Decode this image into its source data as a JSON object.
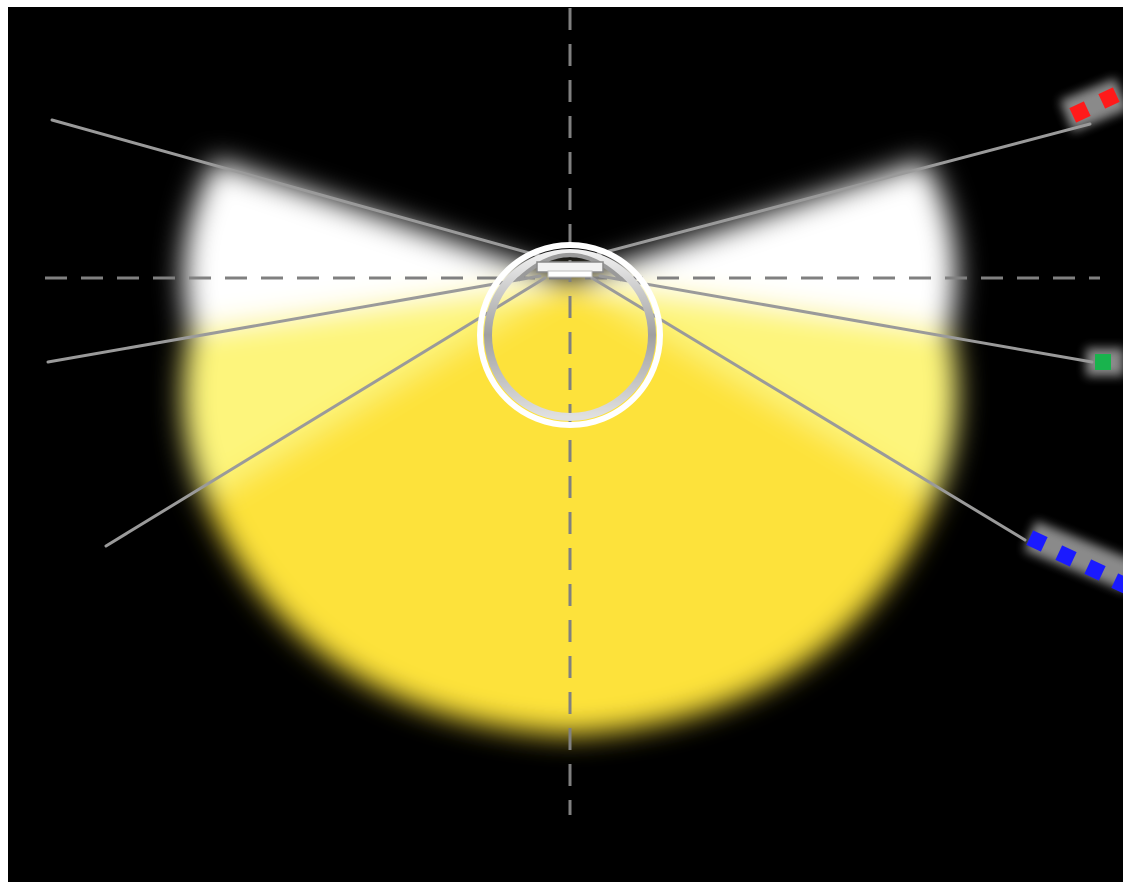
{
  "diagram": {
    "colors": {
      "background": "#000000",
      "frame": "#ffffff",
      "beam_white": "#ffffff",
      "beam_yellow_light": "#fdf57c",
      "beam_yellow": "#fde23a",
      "axis_dash": "#808080",
      "ray": "#9a9a9a",
      "ring": "#d9d9d9",
      "marker_red": "#ff1a1a",
      "marker_green": "#19b34d",
      "marker_blue": "#1a1aff"
    },
    "markers": [
      {
        "name": "red",
        "count": 2,
        "color_key": "marker_red"
      },
      {
        "name": "green",
        "count": 1,
        "color_key": "marker_green"
      },
      {
        "name": "blue",
        "count": 4,
        "color_key": "marker_blue"
      }
    ]
  }
}
